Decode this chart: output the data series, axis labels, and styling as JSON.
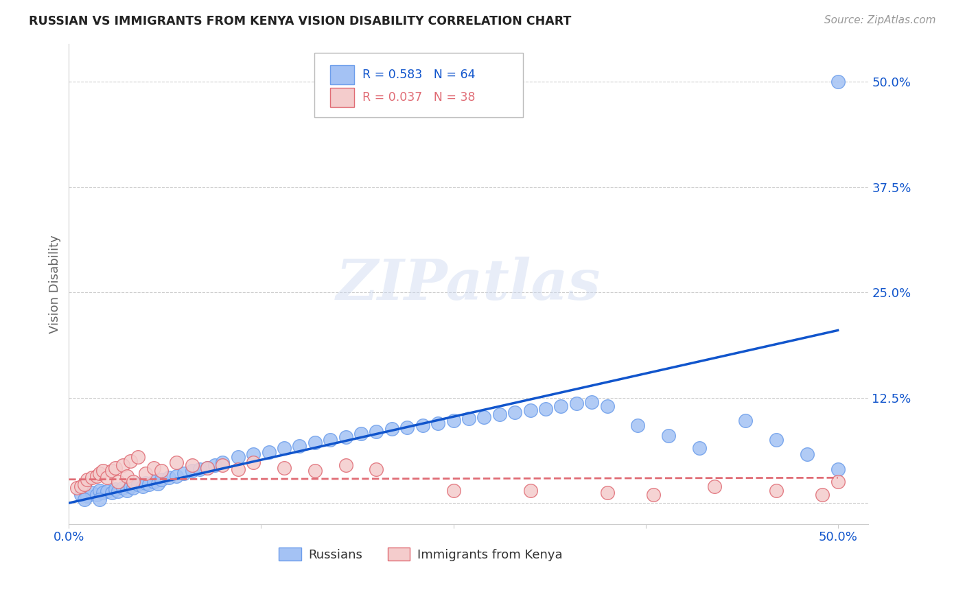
{
  "title": "RUSSIAN VS IMMIGRANTS FROM KENYA VISION DISABILITY CORRELATION CHART",
  "source": "Source: ZipAtlas.com",
  "ylabel": "Vision Disability",
  "xlim": [
    0.0,
    0.52
  ],
  "ylim": [
    -0.025,
    0.545
  ],
  "xticks": [
    0.0,
    0.125,
    0.25,
    0.375,
    0.5
  ],
  "xticklabels": [
    "0.0%",
    "",
    "",
    "",
    "50.0%"
  ],
  "ytick_positions": [
    0.0,
    0.125,
    0.25,
    0.375,
    0.5
  ],
  "ytick_labels": [
    "",
    "12.5%",
    "25.0%",
    "37.5%",
    "50.0%"
  ],
  "blue_color": "#a4c2f4",
  "blue_edge_color": "#6d9eeb",
  "pink_color": "#f4cccc",
  "pink_edge_color": "#e06c75",
  "blue_line_color": "#1155cc",
  "pink_line_color": "#cc4040",
  "grid_color": "#cccccc",
  "background_color": "#ffffff",
  "watermark": "ZIPatlas",
  "russians_x": [
    0.008,
    0.012,
    0.015,
    0.018,
    0.02,
    0.022,
    0.025,
    0.028,
    0.03,
    0.032,
    0.035,
    0.038,
    0.04,
    0.042,
    0.045,
    0.048,
    0.05,
    0.052,
    0.055,
    0.058,
    0.06,
    0.065,
    0.07,
    0.075,
    0.08,
    0.085,
    0.09,
    0.095,
    0.1,
    0.11,
    0.12,
    0.13,
    0.14,
    0.15,
    0.16,
    0.17,
    0.18,
    0.19,
    0.2,
    0.21,
    0.22,
    0.23,
    0.24,
    0.25,
    0.26,
    0.27,
    0.28,
    0.29,
    0.3,
    0.31,
    0.32,
    0.33,
    0.34,
    0.35,
    0.37,
    0.39,
    0.41,
    0.44,
    0.46,
    0.48,
    0.5,
    0.01,
    0.02,
    0.5
  ],
  "russians_y": [
    0.01,
    0.008,
    0.012,
    0.01,
    0.015,
    0.012,
    0.014,
    0.012,
    0.016,
    0.014,
    0.018,
    0.015,
    0.02,
    0.018,
    0.022,
    0.02,
    0.024,
    0.022,
    0.025,
    0.023,
    0.028,
    0.03,
    0.032,
    0.035,
    0.038,
    0.04,
    0.042,
    0.045,
    0.048,
    0.055,
    0.058,
    0.06,
    0.065,
    0.068,
    0.072,
    0.075,
    0.078,
    0.082,
    0.085,
    0.088,
    0.09,
    0.092,
    0.095,
    0.098,
    0.1,
    0.102,
    0.105,
    0.108,
    0.11,
    0.112,
    0.115,
    0.118,
    0.12,
    0.115,
    0.092,
    0.08,
    0.065,
    0.098,
    0.075,
    0.058,
    0.04,
    0.004,
    0.004,
    0.5
  ],
  "kenya_x": [
    0.005,
    0.008,
    0.01,
    0.012,
    0.015,
    0.018,
    0.02,
    0.022,
    0.025,
    0.028,
    0.03,
    0.032,
    0.035,
    0.038,
    0.04,
    0.042,
    0.045,
    0.05,
    0.055,
    0.06,
    0.07,
    0.08,
    0.09,
    0.1,
    0.11,
    0.12,
    0.14,
    0.16,
    0.18,
    0.2,
    0.25,
    0.3,
    0.35,
    0.38,
    0.42,
    0.46,
    0.49,
    0.5
  ],
  "kenya_y": [
    0.018,
    0.02,
    0.022,
    0.028,
    0.03,
    0.032,
    0.035,
    0.038,
    0.03,
    0.038,
    0.042,
    0.025,
    0.045,
    0.032,
    0.05,
    0.025,
    0.055,
    0.035,
    0.042,
    0.038,
    0.048,
    0.045,
    0.042,
    0.045,
    0.04,
    0.048,
    0.042,
    0.038,
    0.045,
    0.04,
    0.015,
    0.015,
    0.012,
    0.01,
    0.02,
    0.015,
    0.01,
    0.025
  ],
  "blue_trendline_x": [
    0.0,
    0.5
  ],
  "blue_trendline_y": [
    0.0,
    0.205
  ],
  "pink_trendline_x": [
    0.0,
    0.5
  ],
  "pink_trendline_y": [
    0.028,
    0.03
  ]
}
